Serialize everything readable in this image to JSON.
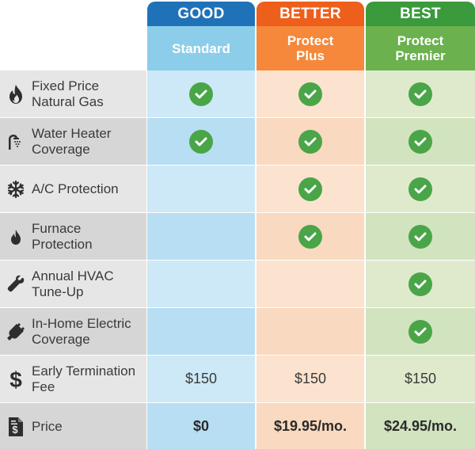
{
  "tiers": [
    {
      "tab": "GOOD",
      "name": "Standard",
      "tab_color": "#1f72b8",
      "sub_color": "#8ccdea"
    },
    {
      "tab": "BETTER",
      "name": "Protect Plus",
      "tab_color": "#ee5f1c",
      "sub_color": "#f5883a"
    },
    {
      "tab": "BEST",
      "name": "Protect Premier",
      "tab_color": "#3a9a3c",
      "sub_color": "#6bb14e"
    }
  ],
  "rows": [
    {
      "label": "Fixed Price Natural Gas",
      "icon": "flame-icon",
      "values": [
        "check",
        "check",
        "check"
      ]
    },
    {
      "label": "Water Heater Coverage",
      "icon": "shower-icon",
      "values": [
        "check",
        "check",
        "check"
      ]
    },
    {
      "label": "A/C Protection",
      "icon": "snowflake-icon",
      "values": [
        "",
        "check",
        "check"
      ]
    },
    {
      "label": "Furnace Protection",
      "icon": "small-flame-icon",
      "values": [
        "",
        "check",
        "check"
      ]
    },
    {
      "label": "Annual HVAC Tune-Up",
      "icon": "wrench-icon",
      "values": [
        "",
        "",
        "check"
      ]
    },
    {
      "label": "In-Home Electric Coverage",
      "icon": "plug-icon",
      "values": [
        "",
        "",
        "check"
      ]
    },
    {
      "label": "Early Termination Fee",
      "icon": "dollar-icon",
      "values": [
        "$150",
        "$150",
        "$150"
      ]
    },
    {
      "label": "Price",
      "icon": "bill-icon",
      "values": [
        "$0",
        "$19.95/mo.",
        "$24.95/mo."
      ]
    }
  ],
  "colors": {
    "check": "#4aa548",
    "label_bg": "#e6e6e6",
    "text": "#3a3a3a"
  }
}
